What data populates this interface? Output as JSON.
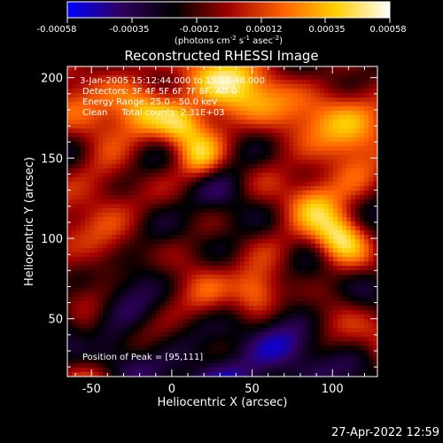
{
  "colorbar": {
    "ticks": [
      "-0.00058",
      "-0.00035",
      "-0.00012",
      "0.00012",
      "0.00035",
      "0.00058"
    ],
    "units_main": "(photons cm",
    "units_exp1": "-2",
    "units_mid": " s",
    "units_exp2": "-1",
    "units_tail": " asec",
    "units_exp3": "-2",
    "units_close": ")",
    "colors": [
      "#0000ff",
      "#300060",
      "#000000",
      "#a00000",
      "#ff6000",
      "#ffd000",
      "#ffffff"
    ]
  },
  "chart_data": {
    "type": "heatmap",
    "title": "Reconstructed RHESSI Image",
    "xlabel": "Heliocentric X (arcsec)",
    "ylabel": "Heliocentric Y (arcsec)",
    "xlim": [
      -65,
      128
    ],
    "ylim": [
      14,
      207
    ],
    "xticks": [
      -50,
      0,
      50,
      100
    ],
    "yticks": [
      50,
      100,
      150,
      200
    ],
    "value_range": [
      -0.00058,
      0.00058
    ],
    "peak": [
      95,
      111
    ],
    "annotations": [
      "3-Jan-2005 15:12:44.000 to 15:13:48.000",
      "Detectors: 3F 4F 5F 6F 7F 8F, Att 0",
      "Energy Range: 25.0 - 50.0 keV",
      "Clean     Total counts: 2.31E+03",
      "Position of Peak = [95,111]"
    ]
  },
  "timestamp": "27-Apr-2022 12:59"
}
